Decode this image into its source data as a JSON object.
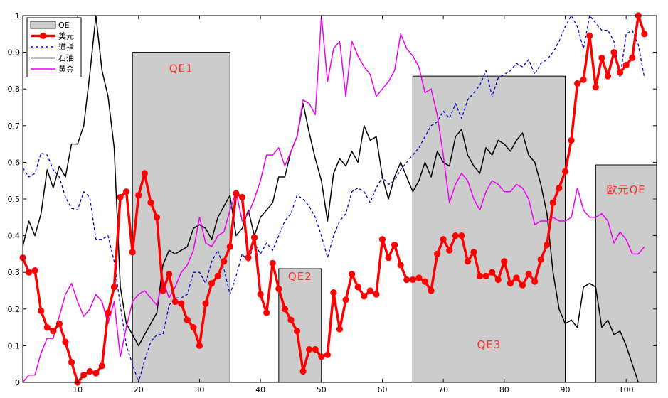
{
  "chart_data": {
    "type": "line",
    "title": "",
    "xlabel": "",
    "ylabel": "",
    "xlim": [
      1,
      105
    ],
    "ylim": [
      0,
      1
    ],
    "xticks": [
      10,
      20,
      30,
      40,
      50,
      60,
      70,
      80,
      90,
      100
    ],
    "yticks": [
      0,
      0.1,
      0.2,
      0.3,
      0.4,
      0.5,
      0.6,
      0.7,
      0.8,
      0.9,
      1
    ],
    "grid": false,
    "legend_position": "top-left",
    "qe_periods": [
      {
        "label": "QE1",
        "x_start": 19,
        "x_end": 35,
        "height": 0.9
      },
      {
        "label": "QE2",
        "x_start": 43,
        "x_end": 50,
        "height": 0.31
      },
      {
        "label": "QE3",
        "x_start": 65,
        "x_end": 90,
        "height": 0.835
      },
      {
        "label": "欧元QE",
        "x_start": 95,
        "x_end": 105,
        "height": 0.593
      }
    ],
    "legend": [
      {
        "name": "QE",
        "kind": "patch",
        "color": "#cccccc"
      },
      {
        "name": "美元",
        "kind": "line-marker",
        "color": "#ff0000"
      },
      {
        "name": "道指",
        "kind": "dashed",
        "color": "#0000cc"
      },
      {
        "name": "石油",
        "kind": "solid",
        "color": "#000000"
      },
      {
        "name": "黄金",
        "kind": "solid",
        "color": "#ee00ee"
      }
    ],
    "series": [
      {
        "name": "美元",
        "color": "#ff0000",
        "style": "marker",
        "x_start": 1,
        "values": [
          0.34,
          0.3,
          0.305,
          0.195,
          0.15,
          0.14,
          0.16,
          0.11,
          0.055,
          0.0,
          0.02,
          0.03,
          0.025,
          0.045,
          0.19,
          0.26,
          0.505,
          0.52,
          0.355,
          0.51,
          0.57,
          0.49,
          0.45,
          0.25,
          0.295,
          0.22,
          0.215,
          0.17,
          0.15,
          0.1,
          0.215,
          0.27,
          0.29,
          0.33,
          0.37,
          0.515,
          0.505,
          0.34,
          0.395,
          0.24,
          0.19,
          0.325,
          0.255,
          0.2,
          0.17,
          0.14,
          0.03,
          0.09,
          0.09,
          0.07,
          0.075,
          0.245,
          0.145,
          0.225,
          0.295,
          0.26,
          0.235,
          0.25,
          0.24,
          0.39,
          0.34,
          0.375,
          0.32,
          0.28,
          0.28,
          0.285,
          0.275,
          0.25,
          0.35,
          0.39,
          0.36,
          0.4,
          0.4,
          0.33,
          0.355,
          0.29,
          0.29,
          0.3,
          0.28,
          0.33,
          0.27,
          0.285,
          0.265,
          0.295,
          0.275,
          0.335,
          0.375,
          0.49,
          0.53,
          0.575,
          0.66,
          0.815,
          0.825,
          0.945,
          0.805,
          0.885,
          0.835,
          0.9,
          0.845,
          0.865,
          0.885,
          1.0,
          0.95
        ]
      },
      {
        "name": "道指",
        "color": "#0000cc",
        "style": "dashed",
        "x_start": 1,
        "values": [
          0.585,
          0.56,
          0.57,
          0.625,
          0.62,
          0.58,
          0.56,
          0.505,
          0.475,
          0.47,
          0.52,
          0.505,
          0.39,
          0.39,
          0.4,
          0.33,
          0.21,
          0.1,
          0.05,
          0.0,
          0.06,
          0.11,
          0.13,
          0.13,
          0.21,
          0.23,
          0.23,
          0.24,
          0.3,
          0.3,
          0.27,
          0.33,
          0.36,
          0.31,
          0.24,
          0.29,
          0.35,
          0.33,
          0.38,
          0.35,
          0.38,
          0.36,
          0.4,
          0.44,
          0.46,
          0.51,
          0.5,
          0.48,
          0.45,
          0.4,
          0.34,
          0.4,
          0.44,
          0.46,
          0.52,
          0.53,
          0.52,
          0.49,
          0.53,
          0.56,
          0.54,
          0.55,
          0.58,
          0.6,
          0.62,
          0.64,
          0.67,
          0.7,
          0.71,
          0.74,
          0.72,
          0.76,
          0.72,
          0.77,
          0.79,
          0.81,
          0.85,
          0.78,
          0.83,
          0.84,
          0.85,
          0.87,
          0.86,
          0.88,
          0.84,
          0.87,
          0.88,
          0.9,
          0.93,
          0.97,
          1.0,
          0.97,
          0.91,
          1.0,
          0.98,
          0.96,
          0.96,
          0.93,
          0.83,
          0.95,
          0.96,
          0.92,
          0.83
        ]
      },
      {
        "name": "石油",
        "color": "#000000",
        "style": "solid",
        "x_start": 1,
        "values": [
          0.37,
          0.44,
          0.4,
          0.46,
          0.58,
          0.53,
          0.59,
          0.56,
          0.65,
          0.65,
          0.7,
          0.84,
          1.0,
          0.85,
          0.78,
          0.64,
          0.26,
          0.16,
          0.13,
          0.1,
          0.13,
          0.16,
          0.19,
          0.32,
          0.36,
          0.35,
          0.36,
          0.37,
          0.42,
          0.43,
          0.42,
          0.39,
          0.45,
          0.48,
          0.51,
          0.4,
          0.42,
          0.47,
          0.4,
          0.45,
          0.47,
          0.49,
          0.56,
          0.56,
          0.63,
          0.67,
          0.76,
          0.68,
          0.61,
          0.55,
          0.44,
          0.57,
          0.61,
          0.59,
          0.63,
          0.6,
          0.7,
          0.66,
          0.67,
          0.56,
          0.5,
          0.56,
          0.6,
          0.56,
          0.52,
          0.55,
          0.6,
          0.56,
          0.63,
          0.6,
          0.59,
          0.67,
          0.69,
          0.62,
          0.59,
          0.57,
          0.64,
          0.62,
          0.66,
          0.65,
          0.63,
          0.66,
          0.68,
          0.62,
          0.6,
          0.54,
          0.46,
          0.3,
          0.2,
          0.16,
          0.17,
          0.15,
          0.26,
          0.27,
          0.26,
          0.15,
          0.17,
          0.13,
          0.14,
          0.1,
          0.05,
          0.0
        ]
      },
      {
        "name": "黄金",
        "color": "#ee00ee",
        "style": "solid",
        "x_start": 1,
        "values": [
          0.0,
          0.02,
          0.02,
          0.08,
          0.12,
          0.12,
          0.18,
          0.24,
          0.27,
          0.22,
          0.18,
          0.2,
          0.24,
          0.22,
          0.16,
          0.22,
          0.07,
          0.15,
          0.22,
          0.24,
          0.25,
          0.23,
          0.21,
          0.28,
          0.23,
          0.26,
          0.3,
          0.32,
          0.36,
          0.45,
          0.38,
          0.37,
          0.4,
          0.41,
          0.47,
          0.52,
          0.44,
          0.46,
          0.5,
          0.55,
          0.62,
          0.62,
          0.64,
          0.59,
          0.63,
          0.67,
          0.77,
          0.76,
          0.73,
          1.0,
          0.82,
          0.91,
          0.93,
          0.78,
          0.93,
          0.89,
          0.86,
          0.84,
          0.78,
          0.8,
          0.82,
          0.85,
          0.95,
          0.91,
          0.89,
          0.86,
          0.79,
          0.8,
          0.73,
          0.62,
          0.49,
          0.54,
          0.57,
          0.55,
          0.5,
          0.47,
          0.52,
          0.55,
          0.54,
          0.52,
          0.52,
          0.54,
          0.53,
          0.5,
          0.43,
          0.44,
          0.44,
          0.45,
          0.44,
          0.44,
          0.45,
          0.53,
          0.47,
          0.45,
          0.45,
          0.46,
          0.44,
          0.38,
          0.41,
          0.39,
          0.35,
          0.35,
          0.37
        ]
      }
    ]
  }
}
